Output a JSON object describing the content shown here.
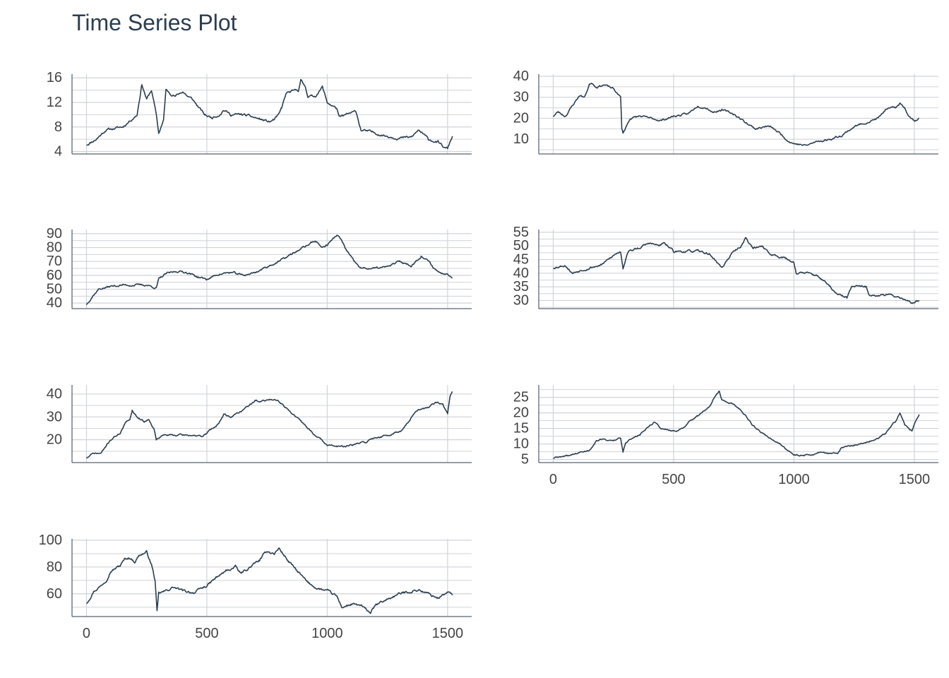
{
  "title": "Time Series Plot",
  "colors": {
    "line": "#2c3e50",
    "grid": "#d0d3d8",
    "axis": "#2c3e50",
    "tick_text": "#444444"
  },
  "chart_data": [
    {
      "type": "line",
      "xlim": [
        -60,
        1600
      ],
      "ylim": [
        3.6,
        16.6
      ],
      "xticks": [
        0,
        500,
        1000,
        1500
      ],
      "show_x_labels": false,
      "yticks": [
        4,
        8,
        12,
        16
      ],
      "keypoints": [
        [
          0,
          5.1
        ],
        [
          40,
          6
        ],
        [
          80,
          7.5
        ],
        [
          150,
          8
        ],
        [
          210,
          10
        ],
        [
          230,
          15
        ],
        [
          250,
          12.5
        ],
        [
          270,
          14
        ],
        [
          290,
          10
        ],
        [
          300,
          7
        ],
        [
          320,
          9
        ],
        [
          330,
          14
        ],
        [
          370,
          13
        ],
        [
          400,
          13.8
        ],
        [
          420,
          13
        ],
        [
          440,
          12.5
        ],
        [
          470,
          11
        ],
        [
          490,
          10
        ],
        [
          520,
          9.5
        ],
        [
          550,
          10
        ],
        [
          570,
          10.8
        ],
        [
          600,
          10
        ],
        [
          650,
          10
        ],
        [
          700,
          9.5
        ],
        [
          760,
          8.8
        ],
        [
          780,
          9.2
        ],
        [
          800,
          10
        ],
        [
          810,
          11
        ],
        [
          830,
          13.5
        ],
        [
          880,
          14
        ],
        [
          890,
          15.6
        ],
        [
          910,
          14.5
        ],
        [
          920,
          13
        ],
        [
          950,
          13
        ],
        [
          980,
          14.5
        ],
        [
          1000,
          12
        ],
        [
          1040,
          11
        ],
        [
          1050,
          9.5
        ],
        [
          1080,
          10
        ],
        [
          1120,
          10.5
        ],
        [
          1140,
          7.5
        ],
        [
          1200,
          7
        ],
        [
          1250,
          6.5
        ],
        [
          1300,
          6.2
        ],
        [
          1350,
          6.3
        ],
        [
          1380,
          7.5
        ],
        [
          1420,
          6
        ],
        [
          1460,
          5.5
        ],
        [
          1490,
          4.5
        ],
        [
          1500,
          4.5
        ],
        [
          1520,
          6.5
        ]
      ],
      "amp": 0.3,
      "seed": 11
    },
    {
      "type": "line",
      "xlim": [
        -60,
        1600
      ],
      "ylim": [
        3,
        41
      ],
      "xticks": [
        0,
        500,
        1000,
        1500
      ],
      "show_x_labels": false,
      "yticks": [
        10,
        20,
        30,
        40
      ],
      "keypoints": [
        [
          0,
          21
        ],
        [
          20,
          23
        ],
        [
          50,
          21
        ],
        [
          80,
          26
        ],
        [
          110,
          31
        ],
        [
          130,
          30
        ],
        [
          150,
          36
        ],
        [
          160,
          37
        ],
        [
          180,
          35
        ],
        [
          210,
          36
        ],
        [
          250,
          34
        ],
        [
          280,
          30
        ],
        [
          285,
          15
        ],
        [
          290,
          13
        ],
        [
          320,
          20
        ],
        [
          360,
          21
        ],
        [
          400,
          20
        ],
        [
          450,
          19
        ],
        [
          500,
          21
        ],
        [
          560,
          22
        ],
        [
          600,
          26
        ],
        [
          640,
          25
        ],
        [
          660,
          23
        ],
        [
          700,
          24
        ],
        [
          750,
          22
        ],
        [
          800,
          18
        ],
        [
          840,
          15
        ],
        [
          880,
          16
        ],
        [
          900,
          16
        ],
        [
          940,
          13
        ],
        [
          980,
          9
        ],
        [
          1000,
          8
        ],
        [
          1050,
          7
        ],
        [
          1100,
          9
        ],
        [
          1150,
          10
        ],
        [
          1200,
          12
        ],
        [
          1250,
          16
        ],
        [
          1300,
          18
        ],
        [
          1350,
          20
        ],
        [
          1380,
          24
        ],
        [
          1420,
          25
        ],
        [
          1440,
          27
        ],
        [
          1460,
          25
        ],
        [
          1480,
          21
        ],
        [
          1500,
          19
        ],
        [
          1520,
          20
        ]
      ],
      "amp": 0.7,
      "seed": 23
    },
    {
      "type": "line",
      "xlim": [
        -60,
        1600
      ],
      "ylim": [
        36,
        93
      ],
      "xticks": [
        0,
        500,
        1000,
        1500
      ],
      "show_x_labels": false,
      "yticks": [
        40,
        50,
        60,
        70,
        80,
        90
      ],
      "keypoints": [
        [
          0,
          39
        ],
        [
          20,
          44
        ],
        [
          50,
          50
        ],
        [
          100,
          52
        ],
        [
          150,
          53
        ],
        [
          200,
          53
        ],
        [
          250,
          53
        ],
        [
          290,
          51
        ],
        [
          300,
          57
        ],
        [
          330,
          61
        ],
        [
          380,
          63
        ],
        [
          420,
          62
        ],
        [
          460,
          59
        ],
        [
          500,
          57
        ],
        [
          550,
          61
        ],
        [
          600,
          62
        ],
        [
          650,
          60
        ],
        [
          700,
          62
        ],
        [
          760,
          67
        ],
        [
          800,
          70
        ],
        [
          850,
          75
        ],
        [
          900,
          80
        ],
        [
          950,
          85
        ],
        [
          980,
          80
        ],
        [
          1000,
          82
        ],
        [
          1040,
          89
        ],
        [
          1060,
          85
        ],
        [
          1080,
          78
        ],
        [
          1110,
          70
        ],
        [
          1140,
          65
        ],
        [
          1200,
          65
        ],
        [
          1250,
          66
        ],
        [
          1300,
          70
        ],
        [
          1350,
          67
        ],
        [
          1390,
          74
        ],
        [
          1420,
          70
        ],
        [
          1450,
          64
        ],
        [
          1480,
          61
        ],
        [
          1500,
          62
        ],
        [
          1520,
          58
        ]
      ],
      "amp": 1.1,
      "seed": 37
    },
    {
      "type": "line",
      "xlim": [
        -60,
        1600
      ],
      "ylim": [
        27,
        56
      ],
      "xticks": [
        0,
        500,
        1000,
        1500
      ],
      "show_x_labels": false,
      "yticks": [
        30,
        35,
        40,
        45,
        50,
        55
      ],
      "keypoints": [
        [
          0,
          42
        ],
        [
          50,
          43
        ],
        [
          80,
          40
        ],
        [
          110,
          41
        ],
        [
          150,
          42
        ],
        [
          200,
          43
        ],
        [
          260,
          47
        ],
        [
          280,
          48
        ],
        [
          290,
          42
        ],
        [
          310,
          48
        ],
        [
          350,
          49
        ],
        [
          400,
          51
        ],
        [
          440,
          50
        ],
        [
          460,
          51
        ],
        [
          500,
          48
        ],
        [
          550,
          48
        ],
        [
          600,
          48
        ],
        [
          650,
          47
        ],
        [
          680,
          44
        ],
        [
          700,
          42
        ],
        [
          740,
          47
        ],
        [
          780,
          50
        ],
        [
          800,
          53
        ],
        [
          830,
          49
        ],
        [
          870,
          50
        ],
        [
          900,
          47
        ],
        [
          950,
          46
        ],
        [
          1000,
          44
        ],
        [
          1010,
          40
        ],
        [
          1050,
          40
        ],
        [
          1100,
          39
        ],
        [
          1150,
          35
        ],
        [
          1180,
          32
        ],
        [
          1220,
          31
        ],
        [
          1240,
          35
        ],
        [
          1300,
          35
        ],
        [
          1310,
          32
        ],
        [
          1350,
          32
        ],
        [
          1400,
          32
        ],
        [
          1450,
          31
        ],
        [
          1490,
          29
        ],
        [
          1520,
          30
        ]
      ],
      "amp": 0.6,
      "seed": 53
    },
    {
      "type": "line",
      "xlim": [
        -60,
        1600
      ],
      "ylim": [
        10,
        44
      ],
      "xticks": [
        0,
        500,
        1000,
        1500
      ],
      "show_x_labels": false,
      "yticks": [
        20,
        30,
        40
      ],
      "keypoints": [
        [
          0,
          12
        ],
        [
          30,
          14
        ],
        [
          60,
          14
        ],
        [
          80,
          17
        ],
        [
          100,
          20
        ],
        [
          140,
          23
        ],
        [
          160,
          27
        ],
        [
          180,
          29
        ],
        [
          190,
          33
        ],
        [
          210,
          30
        ],
        [
          240,
          28
        ],
        [
          260,
          29
        ],
        [
          280,
          25
        ],
        [
          290,
          20
        ],
        [
          320,
          22
        ],
        [
          360,
          22
        ],
        [
          400,
          22
        ],
        [
          450,
          22
        ],
        [
          480,
          21
        ],
        [
          510,
          24
        ],
        [
          550,
          27
        ],
        [
          570,
          31
        ],
        [
          600,
          30
        ],
        [
          650,
          33
        ],
        [
          700,
          37
        ],
        [
          740,
          37
        ],
        [
          780,
          38
        ],
        [
          800,
          37
        ],
        [
          840,
          33
        ],
        [
          880,
          29
        ],
        [
          920,
          25
        ],
        [
          960,
          21
        ],
        [
          1000,
          18
        ],
        [
          1040,
          17
        ],
        [
          1080,
          17
        ],
        [
          1120,
          18
        ],
        [
          1160,
          19
        ],
        [
          1200,
          21
        ],
        [
          1260,
          22
        ],
        [
          1320,
          25
        ],
        [
          1350,
          30
        ],
        [
          1380,
          33
        ],
        [
          1420,
          34
        ],
        [
          1450,
          36
        ],
        [
          1480,
          36
        ],
        [
          1500,
          31
        ],
        [
          1510,
          39
        ],
        [
          1520,
          41
        ]
      ],
      "amp": 0.6,
      "seed": 71
    },
    {
      "type": "line",
      "xlim": [
        -60,
        1600
      ],
      "ylim": [
        4,
        29
      ],
      "xticks": [
        0,
        500,
        1000,
        1500
      ],
      "show_x_labels": true,
      "yticks": [
        5,
        10,
        15,
        20,
        25
      ],
      "keypoints": [
        [
          0,
          5.5
        ],
        [
          50,
          6
        ],
        [
          100,
          7
        ],
        [
          150,
          8
        ],
        [
          180,
          11
        ],
        [
          200,
          11.5
        ],
        [
          250,
          11
        ],
        [
          280,
          12
        ],
        [
          290,
          7.5
        ],
        [
          300,
          10
        ],
        [
          330,
          12
        ],
        [
          360,
          13
        ],
        [
          400,
          16
        ],
        [
          420,
          17
        ],
        [
          450,
          15
        ],
        [
          500,
          14
        ],
        [
          540,
          15
        ],
        [
          560,
          17
        ],
        [
          600,
          19
        ],
        [
          620,
          20
        ],
        [
          650,
          22
        ],
        [
          670,
          25
        ],
        [
          690,
          27
        ],
        [
          700,
          24
        ],
        [
          740,
          23
        ],
        [
          780,
          21
        ],
        [
          800,
          19
        ],
        [
          830,
          16
        ],
        [
          860,
          14
        ],
        [
          900,
          12
        ],
        [
          940,
          10
        ],
        [
          970,
          8
        ],
        [
          1000,
          6.5
        ],
        [
          1050,
          6.5
        ],
        [
          1100,
          7
        ],
        [
          1150,
          7
        ],
        [
          1180,
          7
        ],
        [
          1200,
          9
        ],
        [
          1250,
          9.5
        ],
        [
          1300,
          10.5
        ],
        [
          1350,
          12
        ],
        [
          1380,
          13.5
        ],
        [
          1420,
          17
        ],
        [
          1440,
          20
        ],
        [
          1460,
          16
        ],
        [
          1490,
          14
        ],
        [
          1510,
          18
        ],
        [
          1520,
          19.5
        ]
      ],
      "amp": 0.4,
      "seed": 89
    },
    {
      "type": "line",
      "xlim": [
        -60,
        1600
      ],
      "ylim": [
        43,
        101
      ],
      "xticks": [
        0,
        500,
        1000,
        1500
      ],
      "show_x_labels": true,
      "yticks": [
        60,
        80,
        100
      ],
      "keypoints": [
        [
          0,
          53
        ],
        [
          30,
          62
        ],
        [
          60,
          66
        ],
        [
          80,
          70
        ],
        [
          100,
          77
        ],
        [
          140,
          81
        ],
        [
          160,
          86
        ],
        [
          180,
          87
        ],
        [
          200,
          84
        ],
        [
          220,
          89
        ],
        [
          250,
          91
        ],
        [
          270,
          82
        ],
        [
          285,
          70
        ],
        [
          293,
          46
        ],
        [
          300,
          60
        ],
        [
          330,
          62
        ],
        [
          360,
          65
        ],
        [
          400,
          62
        ],
        [
          450,
          61
        ],
        [
          500,
          66
        ],
        [
          540,
          72
        ],
        [
          580,
          77
        ],
        [
          620,
          80
        ],
        [
          640,
          75
        ],
        [
          680,
          80
        ],
        [
          720,
          85
        ],
        [
          750,
          92
        ],
        [
          780,
          90
        ],
        [
          800,
          94
        ],
        [
          840,
          84
        ],
        [
          880,
          76
        ],
        [
          920,
          68
        ],
        [
          960,
          64
        ],
        [
          1000,
          62
        ],
        [
          1040,
          58
        ],
        [
          1060,
          50
        ],
        [
          1100,
          52
        ],
        [
          1140,
          51
        ],
        [
          1160,
          48
        ],
        [
          1180,
          46
        ],
        [
          1200,
          51
        ],
        [
          1250,
          56
        ],
        [
          1300,
          60
        ],
        [
          1350,
          62
        ],
        [
          1380,
          63
        ],
        [
          1420,
          60
        ],
        [
          1460,
          57
        ],
        [
          1500,
          61
        ],
        [
          1520,
          59
        ]
      ],
      "amp": 1.4,
      "seed": 97
    }
  ]
}
